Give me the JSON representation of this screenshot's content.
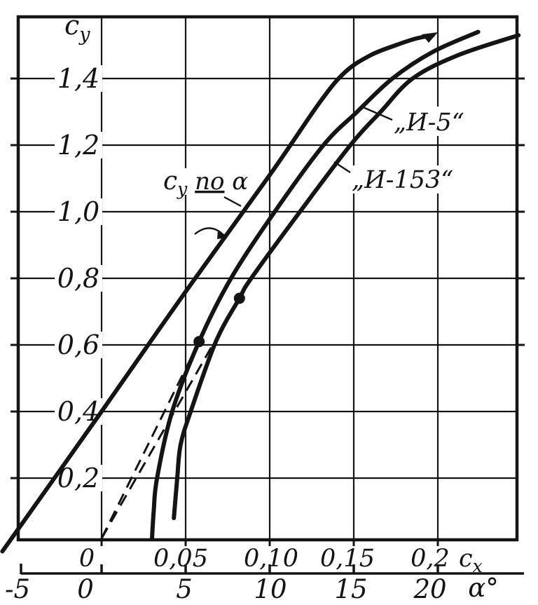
{
  "colors": {
    "ink": "#141414",
    "paper": "#ffffff"
  },
  "y_axis": {
    "title": {
      "main": "c",
      "sub": "y"
    },
    "ticks": [
      "1,4",
      "1,2",
      "1,0",
      "0,8",
      "0,6",
      "0,4",
      "0,2"
    ]
  },
  "x_axis_cx": {
    "title": {
      "main": "c",
      "sub": "x"
    },
    "ticks": [
      "0",
      "0,05",
      "0,10",
      "0,15",
      "0,2"
    ]
  },
  "x_axis_alpha": {
    "title": "α°",
    "ticks": [
      "-5",
      "0",
      "5",
      "10",
      "15",
      "20"
    ]
  },
  "annotations": {
    "lift_label": {
      "main": "c",
      "sub": "y",
      "mid": "по",
      "tail": "α"
    },
    "i5_label": "„И-5“",
    "i153_label": "„И-153“"
  },
  "chart_data": {
    "type": "line",
    "title": "Polar curves of И-5 and И-153 aircraft with c_y versus α line",
    "x_axes": [
      {
        "id": "cx",
        "label": "c_x",
        "ticks": [
          0,
          0.05,
          0.1,
          0.15,
          0.2
        ],
        "range": [
          -0.025,
          0.26
        ]
      },
      {
        "id": "alpha",
        "label": "α°",
        "ticks": [
          -5,
          0,
          5,
          10,
          15,
          20
        ],
        "range": [
          -5,
          21
        ]
      }
    ],
    "y_axis": {
      "label": "c_y",
      "ticks": [
        0.2,
        0.4,
        0.6,
        0.8,
        1.0,
        1.2,
        1.4
      ],
      "range": [
        0,
        1.58
      ]
    },
    "grid": true,
    "series": [
      {
        "name": "c_y по α",
        "axis": "alpha",
        "style": "solid",
        "arrow_end": true,
        "x": [
          -5.9,
          0,
          5,
          10,
          13,
          14.5,
          16,
          17.5,
          18.7,
          19.7
        ],
        "y": [
          -0.02,
          0.4,
          0.76,
          1.11,
          1.33,
          1.42,
          1.47,
          1.5,
          1.52,
          1.53
        ]
      },
      {
        "name": "И-5",
        "axis": "cx",
        "style": "solid",
        "x": [
          0.03,
          0.031,
          0.033,
          0.042,
          0.058,
          0.077,
          0.103,
          0.132,
          0.152,
          0.173,
          0.197,
          0.224
        ],
        "y": [
          0.0,
          0.1,
          0.2,
          0.4,
          0.61,
          0.8,
          1.0,
          1.2,
          1.3,
          1.4,
          1.48,
          1.54
        ]
      },
      {
        "name": "И-153",
        "axis": "cx",
        "style": "solid",
        "x": [
          0.043,
          0.045,
          0.047,
          0.053,
          0.068,
          0.082,
          0.089,
          0.118,
          0.148,
          0.166,
          0.185,
          0.212,
          0.248
        ],
        "y": [
          0.08,
          0.2,
          0.3,
          0.4,
          0.61,
          0.74,
          0.8,
          1.0,
          1.2,
          1.3,
          1.4,
          1.47,
          1.53
        ]
      }
    ],
    "marked_points": [
      {
        "series": "И-5",
        "x": 0.058,
        "y": 0.61
      },
      {
        "series": "И-153",
        "x": 0.082,
        "y": 0.74
      }
    ],
    "tangent_lines": [
      {
        "from": [
          0,
          0
        ],
        "to": [
          0.058,
          0.61
        ],
        "style": "dashed"
      },
      {
        "from": [
          0,
          0
        ],
        "to": [
          0.082,
          0.74
        ],
        "style": "dashed"
      }
    ]
  }
}
